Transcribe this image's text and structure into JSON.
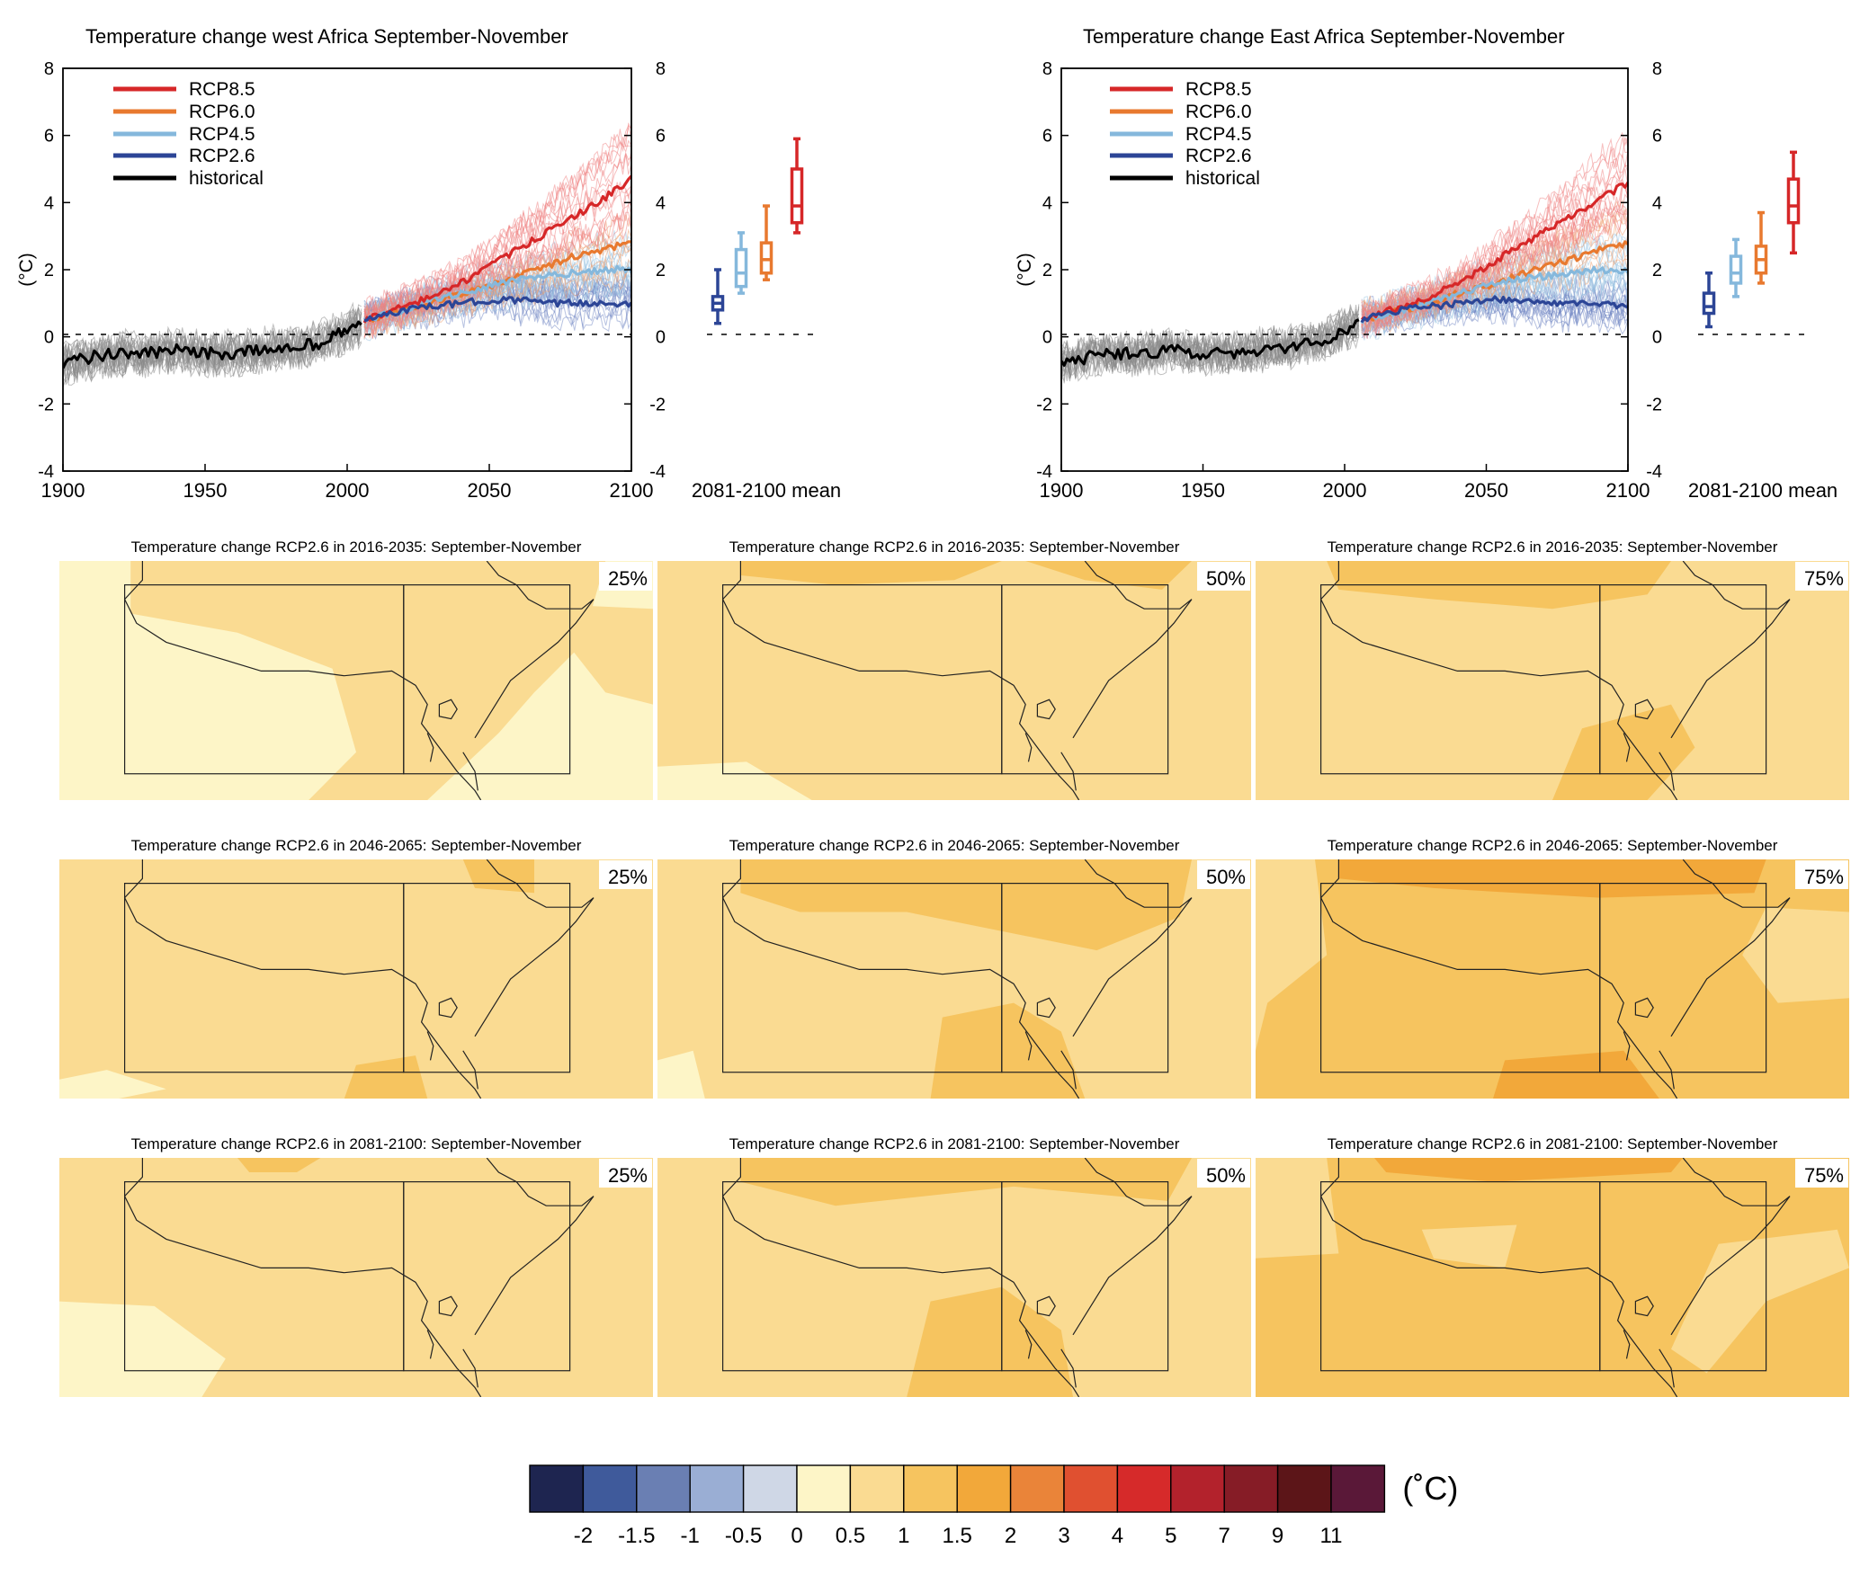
{
  "chart_data": [
    {
      "type": "line",
      "title": "Temperature change west Africa September-November",
      "ylabel": "(°C)",
      "xlim": [
        1900,
        2100
      ],
      "ylim": [
        -4,
        8
      ],
      "xticks": [
        1900,
        1950,
        2000,
        2050,
        2100
      ],
      "yticks": [
        -4,
        -2,
        0,
        2,
        4,
        6,
        8
      ],
      "legend_position": "top-left",
      "series": [
        {
          "name": "RCP8.5",
          "color": "#d62728",
          "x": [
            2006,
            2020,
            2030,
            2040,
            2050,
            2060,
            2070,
            2080,
            2090,
            2100
          ],
          "values": [
            0.5,
            0.9,
            1.2,
            1.6,
            2.1,
            2.6,
            3.1,
            3.6,
            4.1,
            4.7
          ]
        },
        {
          "name": "RCP6.0",
          "color": "#e8792f",
          "x": [
            2006,
            2020,
            2030,
            2040,
            2050,
            2060,
            2070,
            2080,
            2090,
            2100
          ],
          "values": [
            0.5,
            0.8,
            1.0,
            1.3,
            1.5,
            1.8,
            2.1,
            2.4,
            2.6,
            2.8
          ]
        },
        {
          "name": "RCP4.5",
          "color": "#85b8dc",
          "x": [
            2006,
            2020,
            2030,
            2040,
            2050,
            2060,
            2070,
            2080,
            2090,
            2100
          ],
          "values": [
            0.5,
            0.8,
            1.1,
            1.3,
            1.5,
            1.7,
            1.8,
            1.9,
            2.0,
            2.0
          ]
        },
        {
          "name": "RCP2.6",
          "color": "#2c4596",
          "x": [
            2006,
            2020,
            2030,
            2040,
            2050,
            2060,
            2070,
            2080,
            2090,
            2100
          ],
          "values": [
            0.5,
            0.8,
            0.9,
            1.0,
            1.1,
            1.1,
            1.0,
            1.0,
            1.0,
            1.0
          ]
        },
        {
          "name": "historical",
          "color": "#000000",
          "x": [
            1900,
            1910,
            1920,
            1930,
            1940,
            1950,
            1960,
            1970,
            1980,
            1990,
            2000,
            2005
          ],
          "values": [
            -0.8,
            -0.6,
            -0.5,
            -0.5,
            -0.4,
            -0.5,
            -0.5,
            -0.4,
            -0.3,
            -0.2,
            0.2,
            0.4
          ]
        }
      ],
      "box_label": "2081-2100 mean",
      "boxes": [
        {
          "name": "RCP2.6",
          "color": "#2c4596",
          "min": 0.4,
          "q1": 0.8,
          "median": 1.0,
          "q3": 1.2,
          "max": 2.0
        },
        {
          "name": "RCP4.5",
          "color": "#85b8dc",
          "min": 1.3,
          "q1": 1.5,
          "median": 1.9,
          "q3": 2.6,
          "max": 3.1
        },
        {
          "name": "RCP6.0",
          "color": "#e8792f",
          "min": 1.7,
          "q1": 1.9,
          "median": 2.3,
          "q3": 2.8,
          "max": 3.9
        },
        {
          "name": "RCP8.5",
          "color": "#d62728",
          "min": 3.1,
          "q1": 3.4,
          "median": 3.9,
          "q3": 5.0,
          "max": 5.9
        }
      ]
    },
    {
      "type": "line",
      "title": "Temperature change East Africa September-November",
      "ylabel": "(°C)",
      "xlim": [
        1900,
        2100
      ],
      "ylim": [
        -4,
        8
      ],
      "xticks": [
        1900,
        1950,
        2000,
        2050,
        2100
      ],
      "yticks": [
        -4,
        -2,
        0,
        2,
        4,
        6,
        8
      ],
      "legend_position": "top-left",
      "series": [
        {
          "name": "RCP8.5",
          "color": "#d62728",
          "x": [
            2006,
            2020,
            2030,
            2040,
            2050,
            2060,
            2070,
            2080,
            2090,
            2100
          ],
          "values": [
            0.5,
            0.9,
            1.2,
            1.6,
            2.1,
            2.6,
            3.1,
            3.6,
            4.1,
            4.6
          ]
        },
        {
          "name": "RCP6.0",
          "color": "#e8792f",
          "x": [
            2006,
            2020,
            2030,
            2040,
            2050,
            2060,
            2070,
            2080,
            2090,
            2100
          ],
          "values": [
            0.5,
            0.8,
            1.0,
            1.3,
            1.5,
            1.8,
            2.1,
            2.3,
            2.6,
            2.8
          ]
        },
        {
          "name": "RCP4.5",
          "color": "#85b8dc",
          "x": [
            2006,
            2020,
            2030,
            2040,
            2050,
            2060,
            2070,
            2080,
            2090,
            2100
          ],
          "values": [
            0.5,
            0.8,
            1.0,
            1.3,
            1.5,
            1.7,
            1.8,
            1.9,
            2.0,
            2.0
          ]
        },
        {
          "name": "RCP2.6",
          "color": "#2c4596",
          "x": [
            2006,
            2020,
            2030,
            2040,
            2050,
            2060,
            2070,
            2080,
            2090,
            2100
          ],
          "values": [
            0.5,
            0.8,
            0.9,
            1.0,
            1.1,
            1.1,
            1.0,
            1.0,
            1.0,
            0.9
          ]
        },
        {
          "name": "historical",
          "color": "#000000",
          "x": [
            1900,
            1910,
            1920,
            1930,
            1940,
            1950,
            1960,
            1970,
            1980,
            1990,
            2000,
            2005
          ],
          "values": [
            -0.8,
            -0.6,
            -0.5,
            -0.5,
            -0.4,
            -0.5,
            -0.5,
            -0.4,
            -0.3,
            -0.2,
            0.2,
            0.4
          ]
        }
      ],
      "box_label": "2081-2100 mean",
      "boxes": [
        {
          "name": "RCP2.6",
          "color": "#2c4596",
          "min": 0.3,
          "q1": 0.7,
          "median": 0.9,
          "q3": 1.3,
          "max": 1.9
        },
        {
          "name": "RCP4.5",
          "color": "#85b8dc",
          "min": 1.2,
          "q1": 1.6,
          "median": 1.9,
          "q3": 2.4,
          "max": 2.9
        },
        {
          "name": "RCP6.0",
          "color": "#e8792f",
          "min": 1.6,
          "q1": 1.9,
          "median": 2.3,
          "q3": 2.7,
          "max": 3.7
        },
        {
          "name": "RCP8.5",
          "color": "#d62728",
          "min": 2.5,
          "q1": 3.4,
          "median": 3.9,
          "q3": 4.7,
          "max": 5.5
        }
      ]
    },
    {
      "type": "heatmap",
      "maps": [
        {
          "title": "Temperature change RCP2.6 in 2016-2035: September-November",
          "percentile": "25%"
        },
        {
          "title": "Temperature change RCP2.6 in 2016-2035: September-November",
          "percentile": "50%"
        },
        {
          "title": "Temperature change RCP2.6 in 2016-2035: September-November",
          "percentile": "75%"
        },
        {
          "title": "Temperature change RCP2.6 in 2046-2065: September-November",
          "percentile": "25%"
        },
        {
          "title": "Temperature change RCP2.6 in 2046-2065: September-November",
          "percentile": "50%"
        },
        {
          "title": "Temperature change RCP2.6 in 2046-2065: September-November",
          "percentile": "75%"
        },
        {
          "title": "Temperature change RCP2.6 in 2081-2100: September-November",
          "percentile": "25%"
        },
        {
          "title": "Temperature change RCP2.6 in 2081-2100: September-November",
          "percentile": "50%"
        },
        {
          "title": "Temperature change RCP2.6 in 2081-2100: September-November",
          "percentile": "75%"
        }
      ],
      "colorbar": {
        "unit": "(˚C)",
        "ticks": [
          "-2",
          "-1.5",
          "-1",
          "-0.5",
          "0",
          "0.5",
          "1",
          "1.5",
          "2",
          "3",
          "4",
          "5",
          "7",
          "9",
          "11"
        ],
        "colors": [
          "#1e2550",
          "#3f5a9b",
          "#6a7fb3",
          "#9aaed4",
          "#cfd7e6",
          "#fdf5c7",
          "#fadb92",
          "#f6c45f",
          "#f2a83a",
          "#ea8439",
          "#e05030",
          "#d62a2a",
          "#b3222c",
          "#861c26",
          "#5c1518",
          "#5a1838"
        ]
      }
    }
  ]
}
